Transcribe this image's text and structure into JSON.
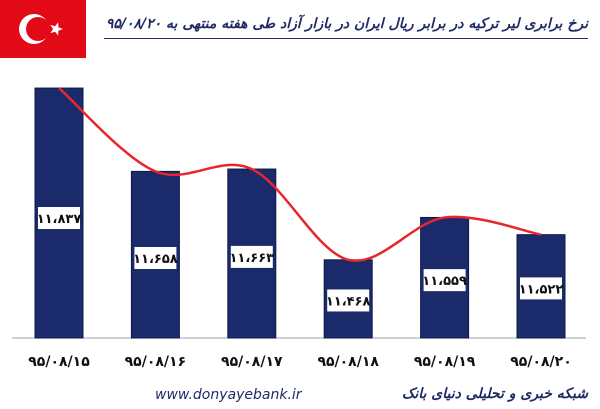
{
  "title": "نرخ برابری لیر ترکیه در برابر ریال ایران در بازار آزاد طی هفته منتهی به ۹۵/۰۸/۲۰",
  "footer": {
    "website": "www.donyayebank.ir",
    "network": "شبکه خبری و تحلیلی دنیای بانک"
  },
  "flag_colors": {
    "field": "#e30a17",
    "emblem": "#ffffff"
  },
  "colors": {
    "bar": "#1b2a6b",
    "curve": "#e8262b",
    "title": "#1f2a66"
  },
  "chart_data": {
    "type": "bar",
    "categories": [
      "۹۵/۰۸/۱۵",
      "۹۵/۰۸/۱۶",
      "۹۵/۰۸/۱۷",
      "۹۵/۰۸/۱۸",
      "۹۵/۰۸/۱۹",
      "۹۵/۰۸/۲۰"
    ],
    "values": [
      11837,
      11658,
      11663,
      11468,
      11559,
      11522
    ],
    "value_labels": [
      "۱۱،۸۳۷",
      "۱۱،۶۵۸",
      "۱۱،۶۶۳",
      "۱۱،۴۶۸",
      "۱۱،۵۵۹",
      "۱۱،۵۲۲"
    ],
    "ylim": [
      11300,
      11850
    ],
    "grid": false,
    "legend": "none",
    "trend_line": "smooth"
  }
}
